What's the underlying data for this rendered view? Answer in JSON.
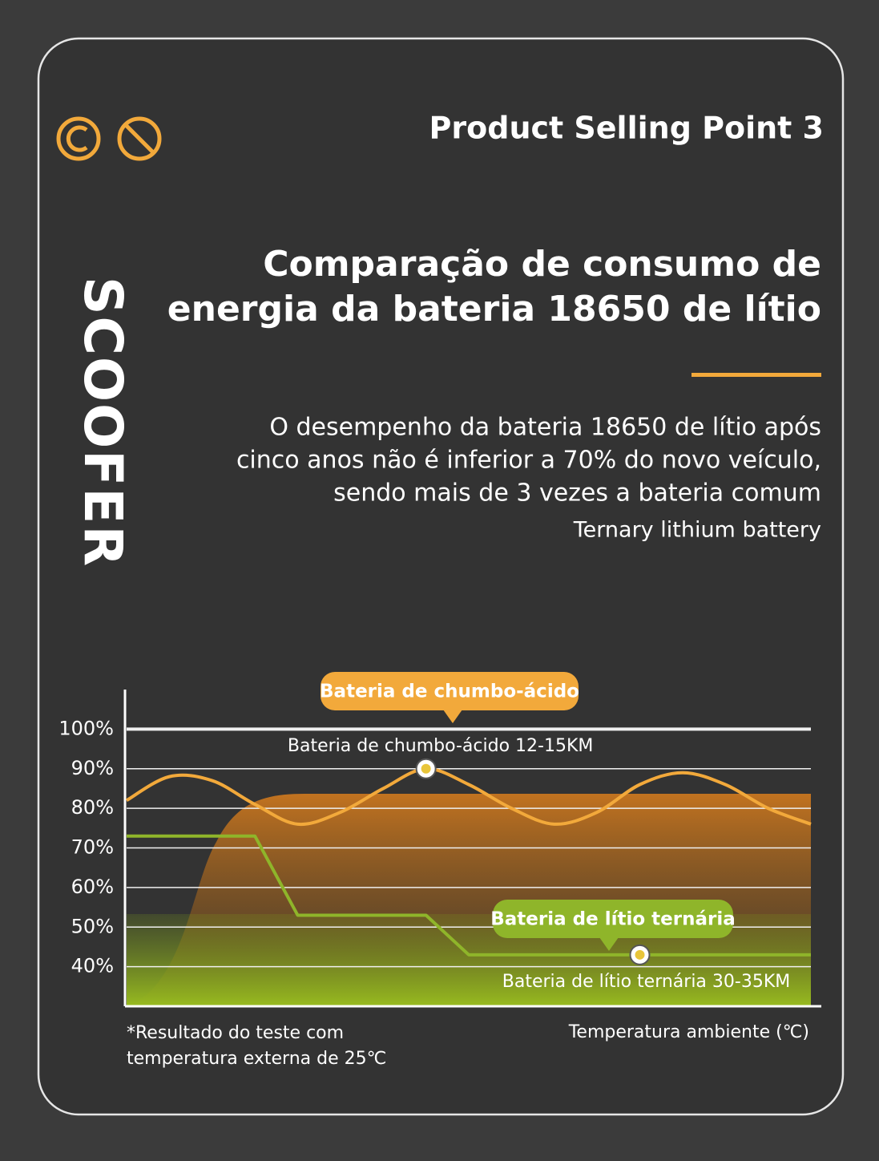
{
  "header": {
    "selling_point": "Product Selling Point 3",
    "brand": "SCOOFER",
    "title_lines": [
      "Comparação de consumo de",
      "energia da bateria 18650 de lítio"
    ],
    "description_lines": [
      "O desempenho da bateria 18650 de lítio após",
      "cinco anos não é inferior a 70% do novo veículo,",
      "sendo mais de 3 vezes a bateria comum"
    ],
    "subtitle": "Ternary lithium battery"
  },
  "chart_data": {
    "type": "line",
    "categories": [
      null,
      null,
      null,
      null,
      null,
      null,
      null,
      null,
      null,
      null,
      null,
      null,
      null,
      null,
      null,
      null,
      null
    ],
    "series": [
      {
        "name": "Bateria de chumbo-ácido",
        "color": "#f2a93b",
        "smooth": true,
        "values": [
          82,
          88,
          87,
          81,
          76,
          79,
          85,
          90,
          86,
          80,
          76,
          79,
          86,
          89,
          86,
          80,
          76
        ]
      },
      {
        "name": "Bateria de lítio ternária",
        "color": "#8fb52a",
        "smooth": false,
        "values": [
          73,
          73,
          73,
          73,
          53,
          53,
          53,
          53,
          43,
          43,
          43,
          43,
          43,
          43,
          43,
          43,
          43
        ]
      }
    ],
    "annotations": [
      "Bateria de chumbo-ácido 12-15KM",
      "Bateria de lítio ternária 30-35KM"
    ],
    "x_label": "Temperatura ambiente (℃)",
    "note_lines": [
      "*Resultado do teste com",
      "temperatura externa de 25℃"
    ],
    "ylim": [
      30,
      110
    ],
    "yticks": [
      {
        "value": 40,
        "label": "40%"
      },
      {
        "value": 50,
        "label": "50%"
      },
      {
        "value": 60,
        "label": "60%"
      },
      {
        "value": 70,
        "label": "70%"
      },
      {
        "value": 80,
        "label": "80%"
      },
      {
        "value": 90,
        "label": "90%"
      },
      {
        "value": 100,
        "label": "100%"
      }
    ],
    "grid": true
  }
}
